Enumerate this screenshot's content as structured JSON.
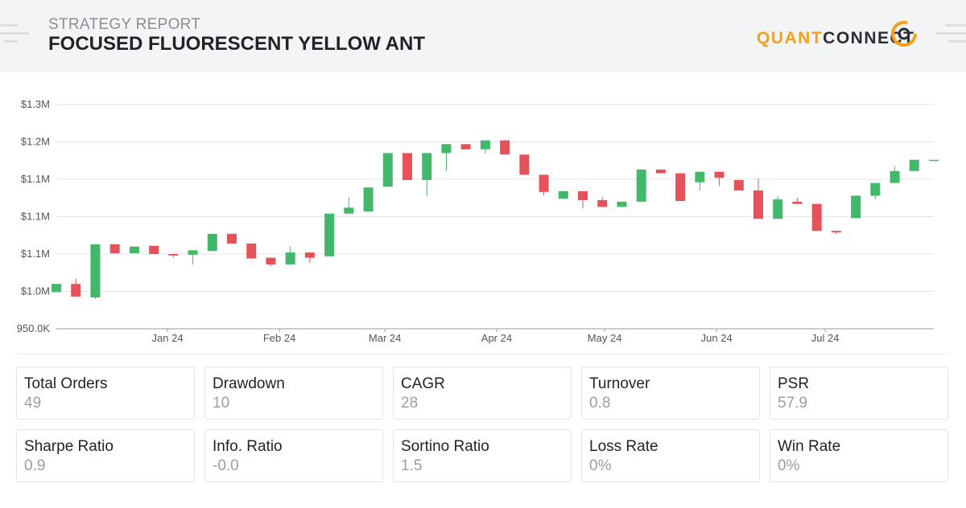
{
  "header": {
    "subtitle": "STRATEGY REPORT",
    "title": "FOCUSED FLUORESCENT YELLOW ANT",
    "logo": [
      "QUANT",
      "CONNECT"
    ]
  },
  "chart_data": {
    "type": "candlestick",
    "categories": [
      null,
      null,
      null,
      null,
      null,
      null,
      null,
      null,
      null,
      null,
      null,
      null,
      null,
      null,
      null,
      null,
      null,
      null,
      null,
      null,
      null,
      null,
      null,
      null,
      null,
      null,
      null,
      null,
      null,
      null,
      null,
      null,
      null,
      null,
      null,
      null,
      null,
      null,
      null,
      null,
      null,
      null,
      null,
      null,
      null,
      null
    ],
    "open": [
      999000,
      1010000,
      992000,
      1063000,
      1051000,
      1061000,
      1050000,
      1049000,
      1054000,
      1077000,
      1064000,
      1045000,
      1036000,
      1052000,
      1047000,
      1104000,
      1107000,
      1140000,
      1185000,
      1149000,
      1185000,
      1197000,
      1190000,
      1202000,
      1183000,
      1156000,
      1124000,
      1134000,
      1122000,
      1113000,
      1120000,
      1163000,
      1158000,
      1146000,
      1160000,
      1149000,
      1135000,
      1097000,
      1120000,
      1117000,
      1081000,
      1098000,
      1128000,
      1145000,
      1161000,
      1176000
    ],
    "high": [
      1010000,
      1017000,
      1063000,
      1063000,
      1060000,
      1061000,
      1050000,
      1055000,
      1077000,
      1077000,
      1064000,
      1045000,
      1060000,
      1052000,
      1104000,
      1126000,
      1139000,
      1185000,
      1185000,
      1185000,
      1197000,
      1197000,
      1202000,
      1202000,
      1183000,
      1156000,
      1134000,
      1134000,
      1126000,
      1120000,
      1163000,
      1163000,
      1158000,
      1160000,
      1160000,
      1149000,
      1151000,
      1128000,
      1125000,
      1117000,
      1081000,
      1128000,
      1145000,
      1168000,
      1176000,
      1176000
    ],
    "low": [
      999000,
      993000,
      990000,
      1051000,
      1051000,
      1050000,
      1045000,
      1036000,
      1054000,
      1064000,
      1044000,
      1034000,
      1036000,
      1038000,
      1047000,
      1104000,
      1107000,
      1140000,
      1149000,
      1127000,
      1161000,
      1190000,
      1184000,
      1183000,
      1156000,
      1128000,
      1124000,
      1111000,
      1113000,
      1113000,
      1120000,
      1158000,
      1121000,
      1135000,
      1141000,
      1135000,
      1097000,
      1097000,
      1117000,
      1081000,
      1077000,
      1098000,
      1123000,
      1145000,
      1161000,
      1176000
    ],
    "close": [
      1010000,
      993000,
      1063000,
      1051000,
      1060000,
      1050000,
      1048000,
      1055000,
      1077000,
      1064000,
      1044000,
      1036000,
      1052000,
      1045000,
      1104000,
      1112000,
      1139000,
      1185000,
      1149000,
      1185000,
      1197000,
      1190000,
      1202000,
      1183000,
      1156000,
      1133000,
      1134000,
      1122000,
      1113000,
      1120000,
      1163000,
      1158000,
      1121000,
      1160000,
      1152000,
      1135000,
      1097000,
      1123000,
      1117000,
      1081000,
      1079000,
      1128000,
      1145000,
      1161000,
      1176000,
      1176000
    ],
    "up_color": "#43b86a",
    "down_color": "#e5525a",
    "ylim": [
      950000,
      1250000
    ],
    "yticks": [
      {
        "value": 950000,
        "label": "950.0K"
      },
      {
        "value": 1000000,
        "label": "$1.0M"
      },
      {
        "value": 1050000,
        "label": "$1.1M"
      },
      {
        "value": 1100000,
        "label": "$1.1M"
      },
      {
        "value": 1150000,
        "label": "$1.1M"
      },
      {
        "value": 1200000,
        "label": "$1.2M"
      },
      {
        "value": 1250000,
        "label": "$1.3M"
      }
    ],
    "xticks": [
      {
        "value": 5.7,
        "label": "Jan 24"
      },
      {
        "value": 11.44,
        "label": "Feb 24"
      },
      {
        "value": 16.85,
        "label": "Mar 24"
      },
      {
        "value": 22.58,
        "label": "Apr 24"
      },
      {
        "value": 28.12,
        "label": "May 24"
      },
      {
        "value": 33.86,
        "label": "Jun 24"
      },
      {
        "value": 39.43,
        "label": "Jul 24"
      }
    ],
    "grid": true
  },
  "metrics": [
    {
      "label": "Total Orders",
      "value": "49"
    },
    {
      "label": "Drawdown",
      "value": "10"
    },
    {
      "label": "CAGR",
      "value": "28"
    },
    {
      "label": "Turnover",
      "value": "0.8"
    },
    {
      "label": "PSR",
      "value": "57.9"
    },
    {
      "label": "Sharpe Ratio",
      "value": "0.9"
    },
    {
      "label": "Info. Ratio",
      "value": "-0.0"
    },
    {
      "label": "Sortino Ratio",
      "value": "1.5"
    },
    {
      "label": "Loss Rate",
      "value": "0%"
    },
    {
      "label": "Win Rate",
      "value": "0%"
    }
  ]
}
